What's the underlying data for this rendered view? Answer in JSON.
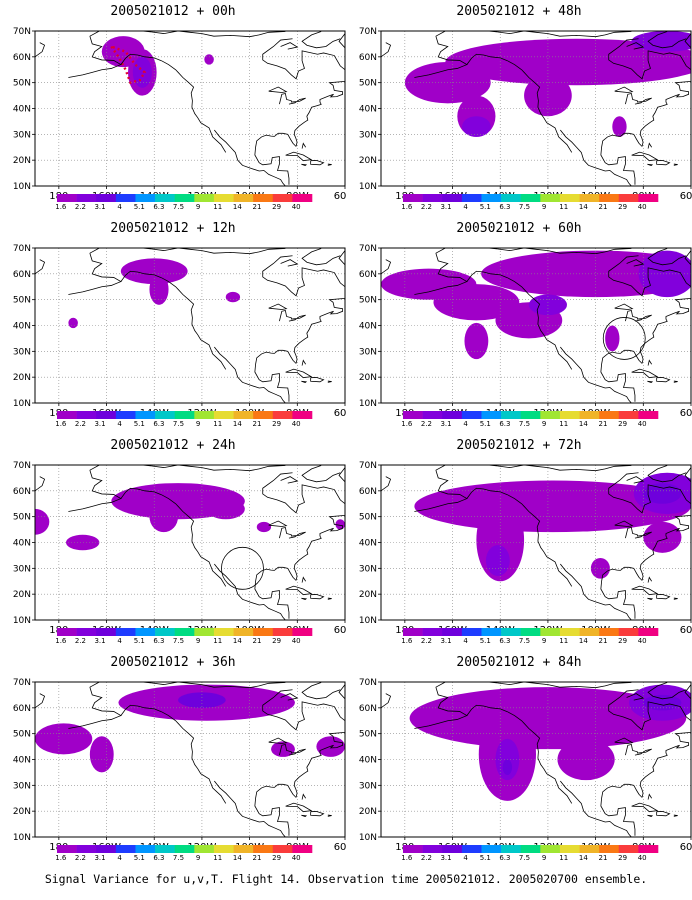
{
  "panels": [
    {
      "title": "2005021012 + 00h",
      "forecast_hour": 0
    },
    {
      "title": "2005021012 + 48h",
      "forecast_hour": 48
    },
    {
      "title": "2005021012 + 12h",
      "forecast_hour": 12
    },
    {
      "title": "2005021012 + 60h",
      "forecast_hour": 60
    },
    {
      "title": "2005021012 + 24h",
      "forecast_hour": 24
    },
    {
      "title": "2005021012 + 72h",
      "forecast_hour": 72
    },
    {
      "title": "2005021012 + 36h",
      "forecast_hour": 36
    },
    {
      "title": "2005021012 + 84h",
      "forecast_hour": 84
    }
  ],
  "map": {
    "lat_labels": [
      "70N",
      "60N",
      "50N",
      "40N",
      "30N",
      "20N",
      "10N"
    ],
    "lon_labels": [
      "180",
      "160W",
      "140W",
      "120W",
      "100W",
      "80W",
      "60W"
    ],
    "lat_range": [
      10,
      70
    ],
    "lon_range": [
      -190,
      -60
    ],
    "grid": "dotted",
    "projection": "lat-lon"
  },
  "colorbar": {
    "labels": [
      "1.6",
      "2.2",
      "3.1",
      "4",
      "5.1",
      "6.3",
      "7.5",
      "9",
      "11",
      "14",
      "21",
      "29",
      "40"
    ],
    "colors": [
      "#a000c8",
      "#8200dc",
      "#6e00dc",
      "#1e3cff",
      "#0096ff",
      "#00c8c8",
      "#00dc82",
      "#a0e632",
      "#e6dc32",
      "#f0b428",
      "#fa7814",
      "#fa3c3c",
      "#f00082"
    ]
  },
  "caption": "Signal Variance for u,v,T. Flight 14. Observation time 2005021012. 2005020700 ensemble."
}
